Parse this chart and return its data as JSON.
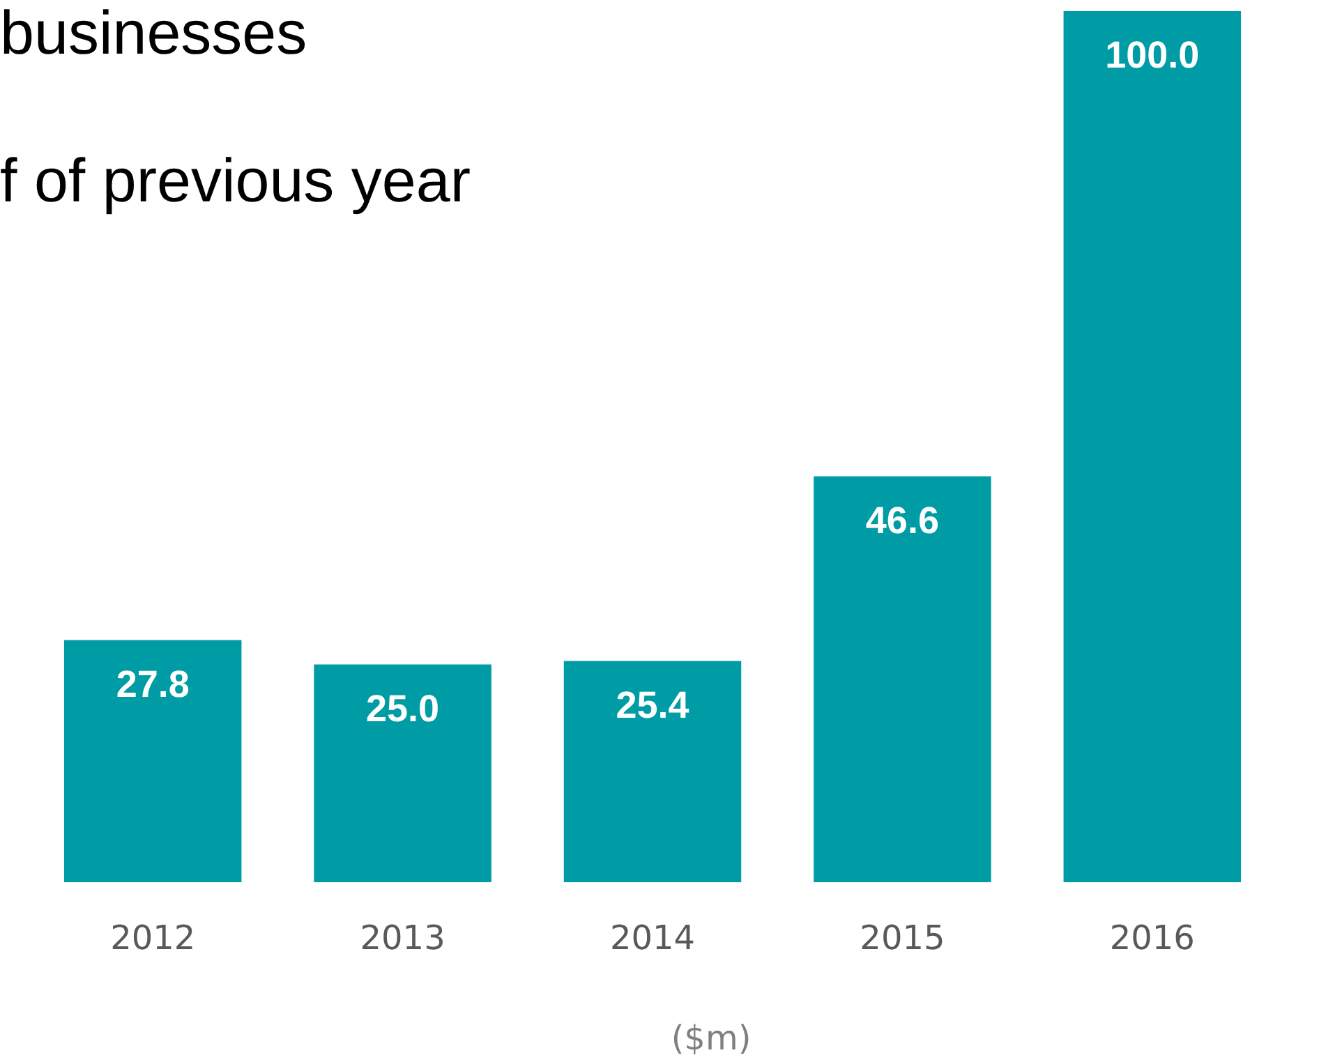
{
  "chart_data": {
    "type": "bar",
    "categories": [
      "2012",
      "2013",
      "2014",
      "2015",
      "2016"
    ],
    "values": [
      27.8,
      25.0,
      25.4,
      46.6,
      100.0
    ],
    "value_labels": [
      "27.8",
      "25.0",
      "25.4",
      "46.6",
      "100.0"
    ],
    "color": "#009ca6",
    "ylim": [
      0,
      100
    ],
    "tick_labels": "x",
    "xlabel": "($m)",
    "annotations": [
      "businesses",
      "f of previous year"
    ]
  }
}
